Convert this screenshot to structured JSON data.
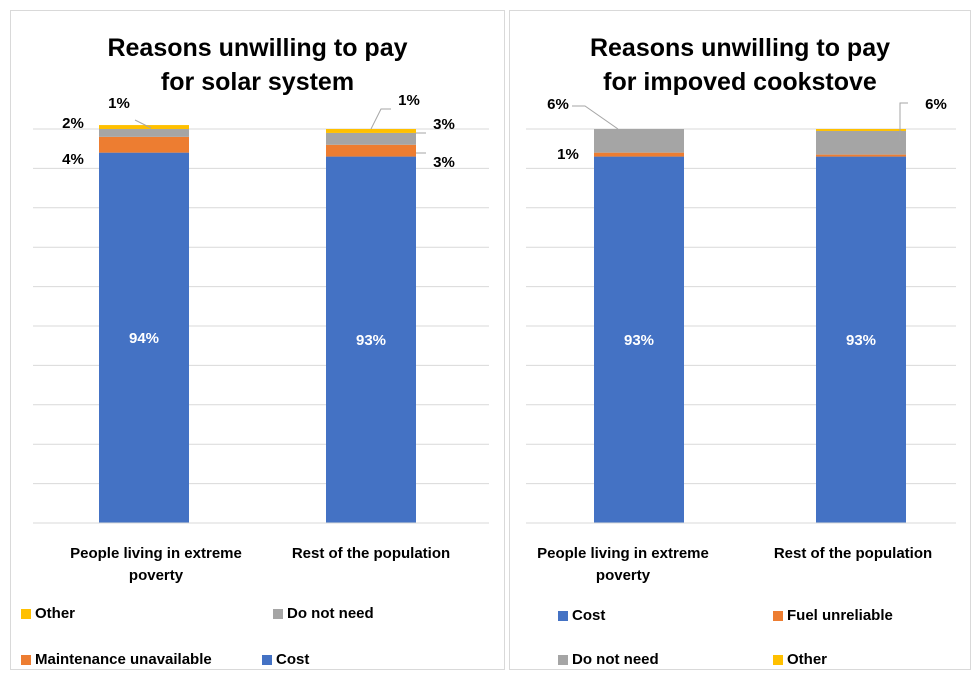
{
  "colors": {
    "cost": "#4472C4",
    "maintenance": "#ED7D31",
    "fuel": "#ED7D31",
    "do_not_need": "#A5A5A5",
    "other": "#FFC000",
    "grid": "#d9d9d9",
    "leader": "#a6a6a6"
  },
  "chart_data": [
    {
      "type": "bar",
      "stacked": true,
      "title": "Reasons unwilling to pay for solar system",
      "title_lines": [
        "Reasons unwilling to pay",
        "for solar system"
      ],
      "categories": [
        "People living in extreme poverty",
        "Rest of the population"
      ],
      "category_lines": [
        [
          "People living in extreme",
          "poverty"
        ],
        [
          "Rest of the population"
        ]
      ],
      "ylim": [
        0,
        100
      ],
      "grid": true,
      "legend_position": "bottom",
      "series": [
        {
          "name": "Cost",
          "key": "cost",
          "values": [
            94,
            93
          ],
          "labels": [
            "94%",
            "93%"
          ]
        },
        {
          "name": "Maintenance unavailable",
          "key": "maintenance",
          "values": [
            4,
            3
          ],
          "labels": [
            "4%",
            "3%"
          ]
        },
        {
          "name": "Do not need",
          "key": "do_not_need",
          "values": [
            2,
            3
          ],
          "labels": [
            "2%",
            "3%"
          ]
        },
        {
          "name": "Other",
          "key": "other",
          "values": [
            1,
            1
          ],
          "labels": [
            "1%",
            "1%"
          ]
        }
      ],
      "legend": [
        {
          "name": "Other",
          "key": "other"
        },
        {
          "name": "Do not need",
          "key": "do_not_need"
        },
        {
          "name": "Maintenance unavailable",
          "key": "maintenance"
        },
        {
          "name": "Cost",
          "key": "cost"
        }
      ]
    },
    {
      "type": "bar",
      "stacked": true,
      "title": "Reasons unwilling to pay for impoved cookstove",
      "title_lines": [
        "Reasons unwilling to pay",
        "for impoved cookstove"
      ],
      "categories": [
        "People living in extreme poverty",
        "Rest of the population"
      ],
      "category_lines": [
        [
          "People living in extreme",
          "poverty"
        ],
        [
          "Rest of the population"
        ]
      ],
      "ylim": [
        0,
        100
      ],
      "grid": true,
      "legend_position": "bottom",
      "series": [
        {
          "name": "Cost",
          "key": "cost",
          "values": [
            93,
            93
          ],
          "labels": [
            "93%",
            "93%"
          ]
        },
        {
          "name": "Fuel unreliable",
          "key": "fuel",
          "values": [
            1,
            0.5
          ],
          "labels": [
            "1%",
            ""
          ]
        },
        {
          "name": "Do not need",
          "key": "do_not_need",
          "values": [
            6,
            6
          ],
          "labels": [
            "6%",
            "6%"
          ]
        },
        {
          "name": "Other",
          "key": "other",
          "values": [
            0,
            0.5
          ],
          "labels": [
            "",
            ""
          ]
        }
      ],
      "legend": [
        {
          "name": "Cost",
          "key": "cost"
        },
        {
          "name": "Fuel unreliable",
          "key": "fuel"
        },
        {
          "name": "Do not need",
          "key": "do_not_need"
        },
        {
          "name": "Other",
          "key": "other"
        }
      ]
    }
  ]
}
